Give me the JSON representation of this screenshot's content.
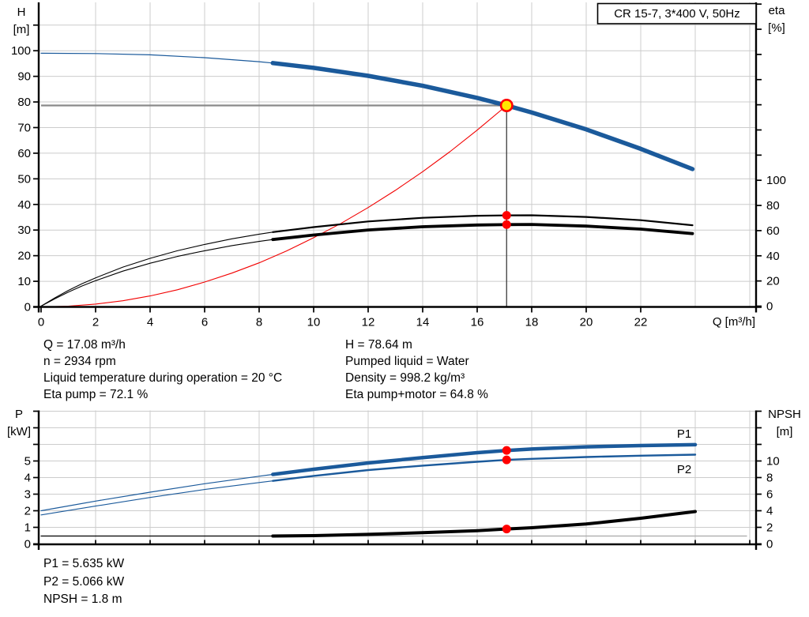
{
  "colors": {
    "blue": "#1b5a9b",
    "red": "#f20000",
    "black": "#000000",
    "grid": "#cccccc",
    "gray": "#8a8a8a",
    "light_gray": "#a8a8a8",
    "guide_dark": "#3c3c3c",
    "marker": "#ff0000",
    "op_fill": "#ffe800"
  },
  "annotations": {
    "top_left": [
      "Q = 17.08 m³/h",
      "n = 2934 rpm",
      "Liquid temperature during operation = 20 °C",
      "Eta pump = 72.1 %"
    ],
    "top_right": [
      "H = 78.64 m",
      "Pumped liquid = Water",
      "Density = 998.2 kg/m³",
      "Eta pump+motor = 64.8 %"
    ],
    "bottom": [
      "P1 = 5.635 kW",
      "P2 = 5.066 kW",
      "NPSH = 1.8 m"
    ]
  },
  "chart_data": [
    {
      "type": "line",
      "title": "CR 15-7, 3*400 V, 50Hz",
      "x_axis": {
        "label": "Q [m³/h]",
        "ticks": [
          0,
          2,
          4,
          6,
          8,
          10,
          12,
          14,
          16,
          18,
          20,
          22
        ],
        "grid": [
          2,
          4,
          6,
          8,
          10,
          12,
          14,
          16,
          18,
          20,
          22,
          24,
          26
        ],
        "range": [
          0,
          26.2
        ]
      },
      "y_left": {
        "axis": "H",
        "label_1": "H",
        "label_2": "[m]",
        "ticks": [
          0,
          10,
          20,
          30,
          40,
          50,
          60,
          70,
          80,
          90,
          100
        ],
        "minor": [
          110
        ],
        "grid": [
          10,
          20,
          30,
          40,
          50,
          60,
          70,
          80,
          90,
          100,
          110
        ],
        "range": [
          0,
          119
        ]
      },
      "y_right": {
        "axis": "eta",
        "label_1": "eta",
        "label_2": "[%]",
        "ticks": [
          0,
          20,
          40,
          60,
          80,
          100
        ],
        "minor": [
          120,
          140,
          160,
          180,
          200,
          220,
          240
        ],
        "range": [
          0,
          242
        ]
      },
      "series": [
        {
          "name": "pump-curve",
          "axis": "H",
          "color": "blue",
          "segments": [
            {
              "w": 1.2,
              "pts": [
                [
                  0,
                  99
                ],
                [
                  2,
                  98.9
                ],
                [
                  4,
                  98.4
                ],
                [
                  6,
                  97.3
                ],
                [
                  8,
                  95.7
                ],
                [
                  8.5,
                  95.2
                ]
              ]
            },
            {
              "w": 5.5,
              "pts": [
                [
                  8.5,
                  95.2
                ],
                [
                  10,
                  93.3
                ],
                [
                  12,
                  90.2
                ],
                [
                  14,
                  86.3
                ],
                [
                  16,
                  81.6
                ],
                [
                  17.08,
                  78.64
                ],
                [
                  18,
                  75.9
                ],
                [
                  20,
                  69.3
                ],
                [
                  22,
                  61.7
                ],
                [
                  23.9,
                  53.8
                ]
              ]
            }
          ]
        },
        {
          "name": "system-curve",
          "axis": "H",
          "color": "red",
          "segments": [
            {
              "w": 1.1,
              "pts": [
                [
                  0,
                  0
                ],
                [
                  1,
                  0.3
                ],
                [
                  2,
                  1.1
                ],
                [
                  3,
                  2.4
                ],
                [
                  4,
                  4.3
                ],
                [
                  5,
                  6.7
                ],
                [
                  6,
                  9.7
                ],
                [
                  7,
                  13.2
                ],
                [
                  8,
                  17.2
                ],
                [
                  9,
                  21.8
                ],
                [
                  10,
                  27
                ],
                [
                  11,
                  32.6
                ],
                [
                  12,
                  38.8
                ],
                [
                  13,
                  45.5
                ],
                [
                  14,
                  52.8
                ],
                [
                  15,
                  60.6
                ],
                [
                  16,
                  69
                ],
                [
                  17.08,
                  78.64
                ]
              ]
            }
          ]
        },
        {
          "name": "eta-pump-curve",
          "axis": "eta",
          "color": "black",
          "segments": [
            {
              "w": 1.1,
              "pts": [
                [
                  0,
                  0
                ],
                [
                  0.5,
                  6.5
                ],
                [
                  1,
                  12.5
                ],
                [
                  1.5,
                  17.8
                ],
                [
                  2,
                  22.5
                ],
                [
                  3,
                  31
                ],
                [
                  4,
                  38
                ],
                [
                  5,
                  44
                ],
                [
                  6,
                  49
                ],
                [
                  7,
                  53.5
                ],
                [
                  8,
                  57.2
                ],
                [
                  8.5,
                  58.8
                ]
              ]
            },
            {
              "w": 2.2,
              "pts": [
                [
                  8.5,
                  58.8
                ],
                [
                  10,
                  62.8
                ],
                [
                  12,
                  67.3
                ],
                [
                  14,
                  70.2
                ],
                [
                  16,
                  71.8
                ],
                [
                  17.08,
                  72.1
                ],
                [
                  18,
                  72.2
                ],
                [
                  20,
                  70.9
                ],
                [
                  22,
                  68.3
                ],
                [
                  23.9,
                  64.3
                ]
              ]
            }
          ]
        },
        {
          "name": "eta-pump-motor-curve",
          "axis": "eta",
          "color": "black",
          "segments": [
            {
              "w": 1.1,
              "pts": [
                [
                  0,
                  0
                ],
                [
                  0.5,
                  5.8
                ],
                [
                  1,
                  11.2
                ],
                [
                  1.5,
                  16
                ],
                [
                  2,
                  20.2
                ],
                [
                  3,
                  27.8
                ],
                [
                  4,
                  34.1
                ],
                [
                  5,
                  39.5
                ],
                [
                  6,
                  44
                ],
                [
                  7,
                  48.1
                ],
                [
                  8,
                  51.4
                ],
                [
                  8.5,
                  52.9
                ]
              ]
            },
            {
              "w": 3.8,
              "pts": [
                [
                  8.5,
                  52.9
                ],
                [
                  10,
                  56.5
                ],
                [
                  12,
                  60.5
                ],
                [
                  14,
                  63.1
                ],
                [
                  16,
                  64.5
                ],
                [
                  17.08,
                  64.8
                ],
                [
                  18,
                  64.9
                ],
                [
                  20,
                  63.6
                ],
                [
                  22,
                  61.2
                ],
                [
                  23.9,
                  57.6
                ]
              ]
            }
          ]
        }
      ],
      "guides": [
        {
          "type": "h",
          "axis": "H",
          "v": 78.64,
          "q1": 0,
          "q2": 17.08,
          "color": "gray",
          "w": 2.2
        },
        {
          "type": "v",
          "axis": "H",
          "q": 17.08,
          "v1": 78.64,
          "v2": 0,
          "color": "guide_dark",
          "w": 1.3
        }
      ],
      "markers": [
        {
          "axis": "eta",
          "q": 17.08,
          "v": 72.1
        },
        {
          "axis": "eta",
          "q": 17.08,
          "v": 64.8
        }
      ],
      "op_point": {
        "axis": "H",
        "q": 17.08,
        "v": 78.64
      },
      "op_values": {
        "Q": "17.08 m³/h",
        "H": "78.64 m",
        "eta_pump": "72.1 %",
        "eta_pump_motor": "64.8 %",
        "n": "2934 rpm",
        "liquid": "Water",
        "density": "998.2 kg/m³",
        "liquid_temperature": "20 °C"
      }
    },
    {
      "type": "line",
      "title": "",
      "x_axis": {
        "label": "",
        "ticks": [
          2,
          4,
          6,
          8,
          10,
          12,
          14,
          16,
          18,
          20,
          22,
          24,
          26
        ],
        "grid": [
          2,
          4,
          6,
          8,
          10,
          12,
          14,
          16,
          18,
          20,
          22,
          24,
          26
        ],
        "range": [
          0,
          26.2
        ]
      },
      "y_left": {
        "axis": "P",
        "label_1": "P",
        "label_2": "[kW]",
        "ticks": [
          0,
          1,
          2,
          3,
          4,
          5
        ],
        "minor": [
          6,
          7,
          8
        ],
        "grid": [
          1,
          2,
          3,
          4,
          5,
          6,
          7,
          8
        ],
        "range": [
          0,
          8
        ]
      },
      "y_right": {
        "axis": "NPSH",
        "label_1": "NPSH",
        "label_2": "[m]",
        "ticks": [
          0,
          2,
          4,
          6,
          8,
          10
        ],
        "minor": [
          12,
          14,
          16
        ],
        "range": [
          0,
          16
        ]
      },
      "series": [
        {
          "name": "p1-curve",
          "label": "P1",
          "axis": "P",
          "color": "blue",
          "segments": [
            {
              "w": 1.2,
              "pts": [
                [
                  0,
                  2.0
                ],
                [
                  2,
                  2.58
                ],
                [
                  4,
                  3.12
                ],
                [
                  6,
                  3.63
                ],
                [
                  8,
                  4.08
                ],
                [
                  8.5,
                  4.19
                ]
              ]
            },
            {
              "w": 4.5,
              "pts": [
                [
                  8.5,
                  4.19
                ],
                [
                  10,
                  4.5
                ],
                [
                  12,
                  4.88
                ],
                [
                  14,
                  5.2
                ],
                [
                  16,
                  5.5
                ],
                [
                  17.08,
                  5.635
                ],
                [
                  18,
                  5.72
                ],
                [
                  20,
                  5.85
                ],
                [
                  22,
                  5.93
                ],
                [
                  24,
                  5.98
                ]
              ]
            }
          ]
        },
        {
          "name": "p2-curve",
          "label": "P2",
          "axis": "P",
          "color": "blue",
          "segments": [
            {
              "w": 1.1,
              "pts": [
                [
                  0,
                  1.75
                ],
                [
                  2,
                  2.28
                ],
                [
                  4,
                  2.8
                ],
                [
                  6,
                  3.28
                ],
                [
                  8,
                  3.7
                ],
                [
                  8.5,
                  3.8
                ]
              ]
            },
            {
              "w": 2.4,
              "pts": [
                [
                  8.5,
                  3.8
                ],
                [
                  10,
                  4.1
                ],
                [
                  12,
                  4.45
                ],
                [
                  14,
                  4.72
                ],
                [
                  16,
                  4.95
                ],
                [
                  17.08,
                  5.066
                ],
                [
                  18,
                  5.13
                ],
                [
                  20,
                  5.24
                ],
                [
                  22,
                  5.32
                ],
                [
                  24,
                  5.38
                ]
              ]
            }
          ]
        },
        {
          "name": "npsh-curve",
          "label": "",
          "axis": "NPSH",
          "color": "black",
          "segments": [
            {
              "w": 1.2,
              "pts": [
                [
                  0,
                  0.95
                ],
                [
                  8.5,
                  0.95
                ]
              ]
            },
            {
              "w": 4.0,
              "pts": [
                [
                  8.5,
                  0.95
                ],
                [
                  10,
                  1.0
                ],
                [
                  12,
                  1.15
                ],
                [
                  14,
                  1.35
                ],
                [
                  16,
                  1.6
                ],
                [
                  17.08,
                  1.8
                ],
                [
                  18,
                  1.95
                ],
                [
                  20,
                  2.4
                ],
                [
                  22,
                  3.1
                ],
                [
                  24,
                  3.9
                ]
              ]
            }
          ]
        }
      ],
      "guides": [
        {
          "type": "h",
          "axis": "NPSH",
          "v": 0.95,
          "q1": 8.5,
          "q2": 25.9,
          "color": "light_gray",
          "w": 1.2
        }
      ],
      "markers": [
        {
          "axis": "P",
          "q": 17.08,
          "v": 5.635
        },
        {
          "axis": "P",
          "q": 17.08,
          "v": 5.066
        },
        {
          "axis": "NPSH",
          "q": 17.08,
          "v": 1.8
        }
      ],
      "op_values": {
        "P1": "5.635 kW",
        "P2": "5.066 kW",
        "NPSH": "1.8 m"
      }
    }
  ]
}
